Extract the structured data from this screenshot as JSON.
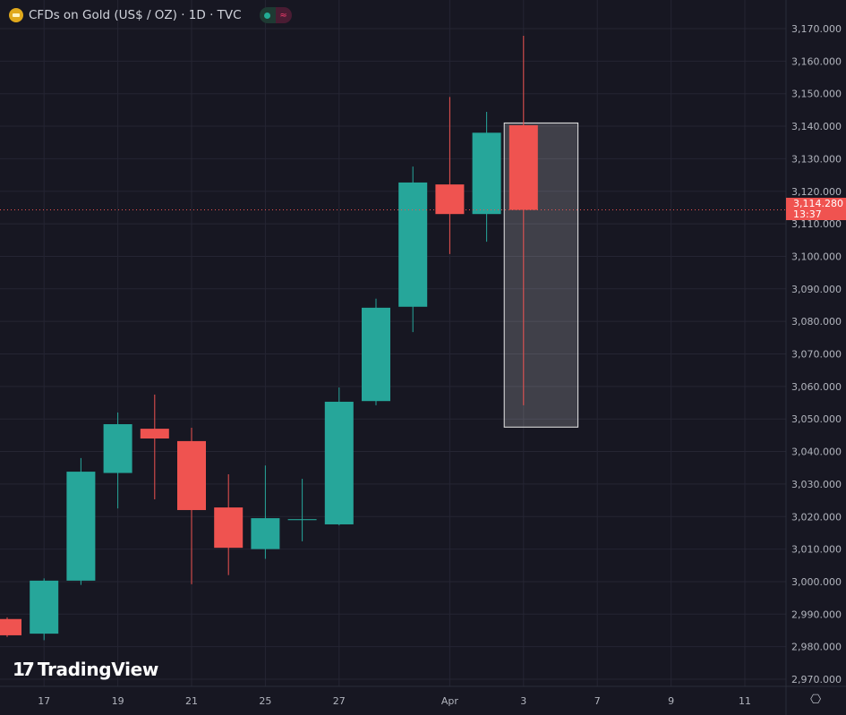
{
  "header": {
    "title": "CFDs on Gold (US$ / OZ) · 1D · TVC",
    "icon": "gold-bars-icon",
    "market_status": "market-open-dot",
    "status_icon": "wave-icon"
  },
  "branding": {
    "logo_text": "TradingView",
    "mark": "17"
  },
  "price_tag": {
    "price": "3,114.280",
    "countdown": "13:37"
  },
  "colors": {
    "up": "#26a69a",
    "down": "#ef5350",
    "background": "#171722",
    "grid": "#252533",
    "selection": "#ffffff"
  },
  "chart_data": {
    "type": "candlestick",
    "ylim": [
      2965,
      3175
    ],
    "grid": true,
    "y_ticks": [
      2970,
      2980,
      2990,
      3000,
      3010,
      3020,
      3030,
      3040,
      3050,
      3060,
      3070,
      3080,
      3090,
      3100,
      3110,
      3120,
      3130,
      3140,
      3150,
      3160,
      3170
    ],
    "y_tick_labels": [
      "2,970.000",
      "2,980.000",
      "2,990.000",
      "3,000.000",
      "3,010.000",
      "3,020.000",
      "3,030.000",
      "3,040.000",
      "3,050.000",
      "3,060.000",
      "3,070.000",
      "3,080.000",
      "3,090.000",
      "3,100.000",
      "3,110.000",
      "3,120.000",
      "3,130.000",
      "3,140.000",
      "3,150.000",
      "3,160.000",
      "3,170.000"
    ],
    "x_tick_labels": [
      {
        "label": "17",
        "index": 1
      },
      {
        "label": "19",
        "index": 3
      },
      {
        "label": "21",
        "index": 5
      },
      {
        "label": "25",
        "index": 7
      },
      {
        "label": "27",
        "index": 9
      },
      {
        "label": "Apr",
        "index": 12
      },
      {
        "label": "3",
        "index": 14
      },
      {
        "label": "7",
        "index": 16
      },
      {
        "label": "9",
        "index": 18
      },
      {
        "label": "11",
        "index": 20
      }
    ],
    "candles": [
      {
        "o": 2988.5,
        "h": 2989,
        "l": 2983,
        "c": 2983.5
      },
      {
        "o": 2984,
        "h": 3001,
        "l": 2982,
        "c": 3000.3
      },
      {
        "o": 3000.3,
        "h": 3038,
        "l": 2999,
        "c": 3033.8
      },
      {
        "o": 3033.4,
        "h": 3052,
        "l": 3022.5,
        "c": 3048.4
      },
      {
        "o": 3047,
        "h": 3057.5,
        "l": 3025.3,
        "c": 3044
      },
      {
        "o": 3043.2,
        "h": 3047.3,
        "l": 2999.2,
        "c": 3022
      },
      {
        "o": 3022.8,
        "h": 3033,
        "l": 3002,
        "c": 3010.4
      },
      {
        "o": 3010,
        "h": 3035.7,
        "l": 3007,
        "c": 3019.5
      },
      {
        "o": 3018.9,
        "h": 3031.6,
        "l": 3012.4,
        "c": 3019.2
      },
      {
        "o": 3017.6,
        "h": 3059.7,
        "l": 3017.3,
        "c": 3055.3
      },
      {
        "o": 3055.5,
        "h": 3087,
        "l": 3054.2,
        "c": 3084.2
      },
      {
        "o": 3084.5,
        "h": 3127.6,
        "l": 3076.7,
        "c": 3122.7
      },
      {
        "o": 3122.1,
        "h": 3149,
        "l": 3100.7,
        "c": 3113
      },
      {
        "o": 3113,
        "h": 3144.4,
        "l": 3104.5,
        "c": 3138
      },
      {
        "o": 3140.3,
        "h": 3167.8,
        "l": 3054.2,
        "c": 3114.28
      }
    ],
    "last_price": 3114.28,
    "selection": {
      "from_index": 13.5,
      "to_index": 15.5,
      "price_from": 3047.5,
      "price_to": 3141
    }
  }
}
